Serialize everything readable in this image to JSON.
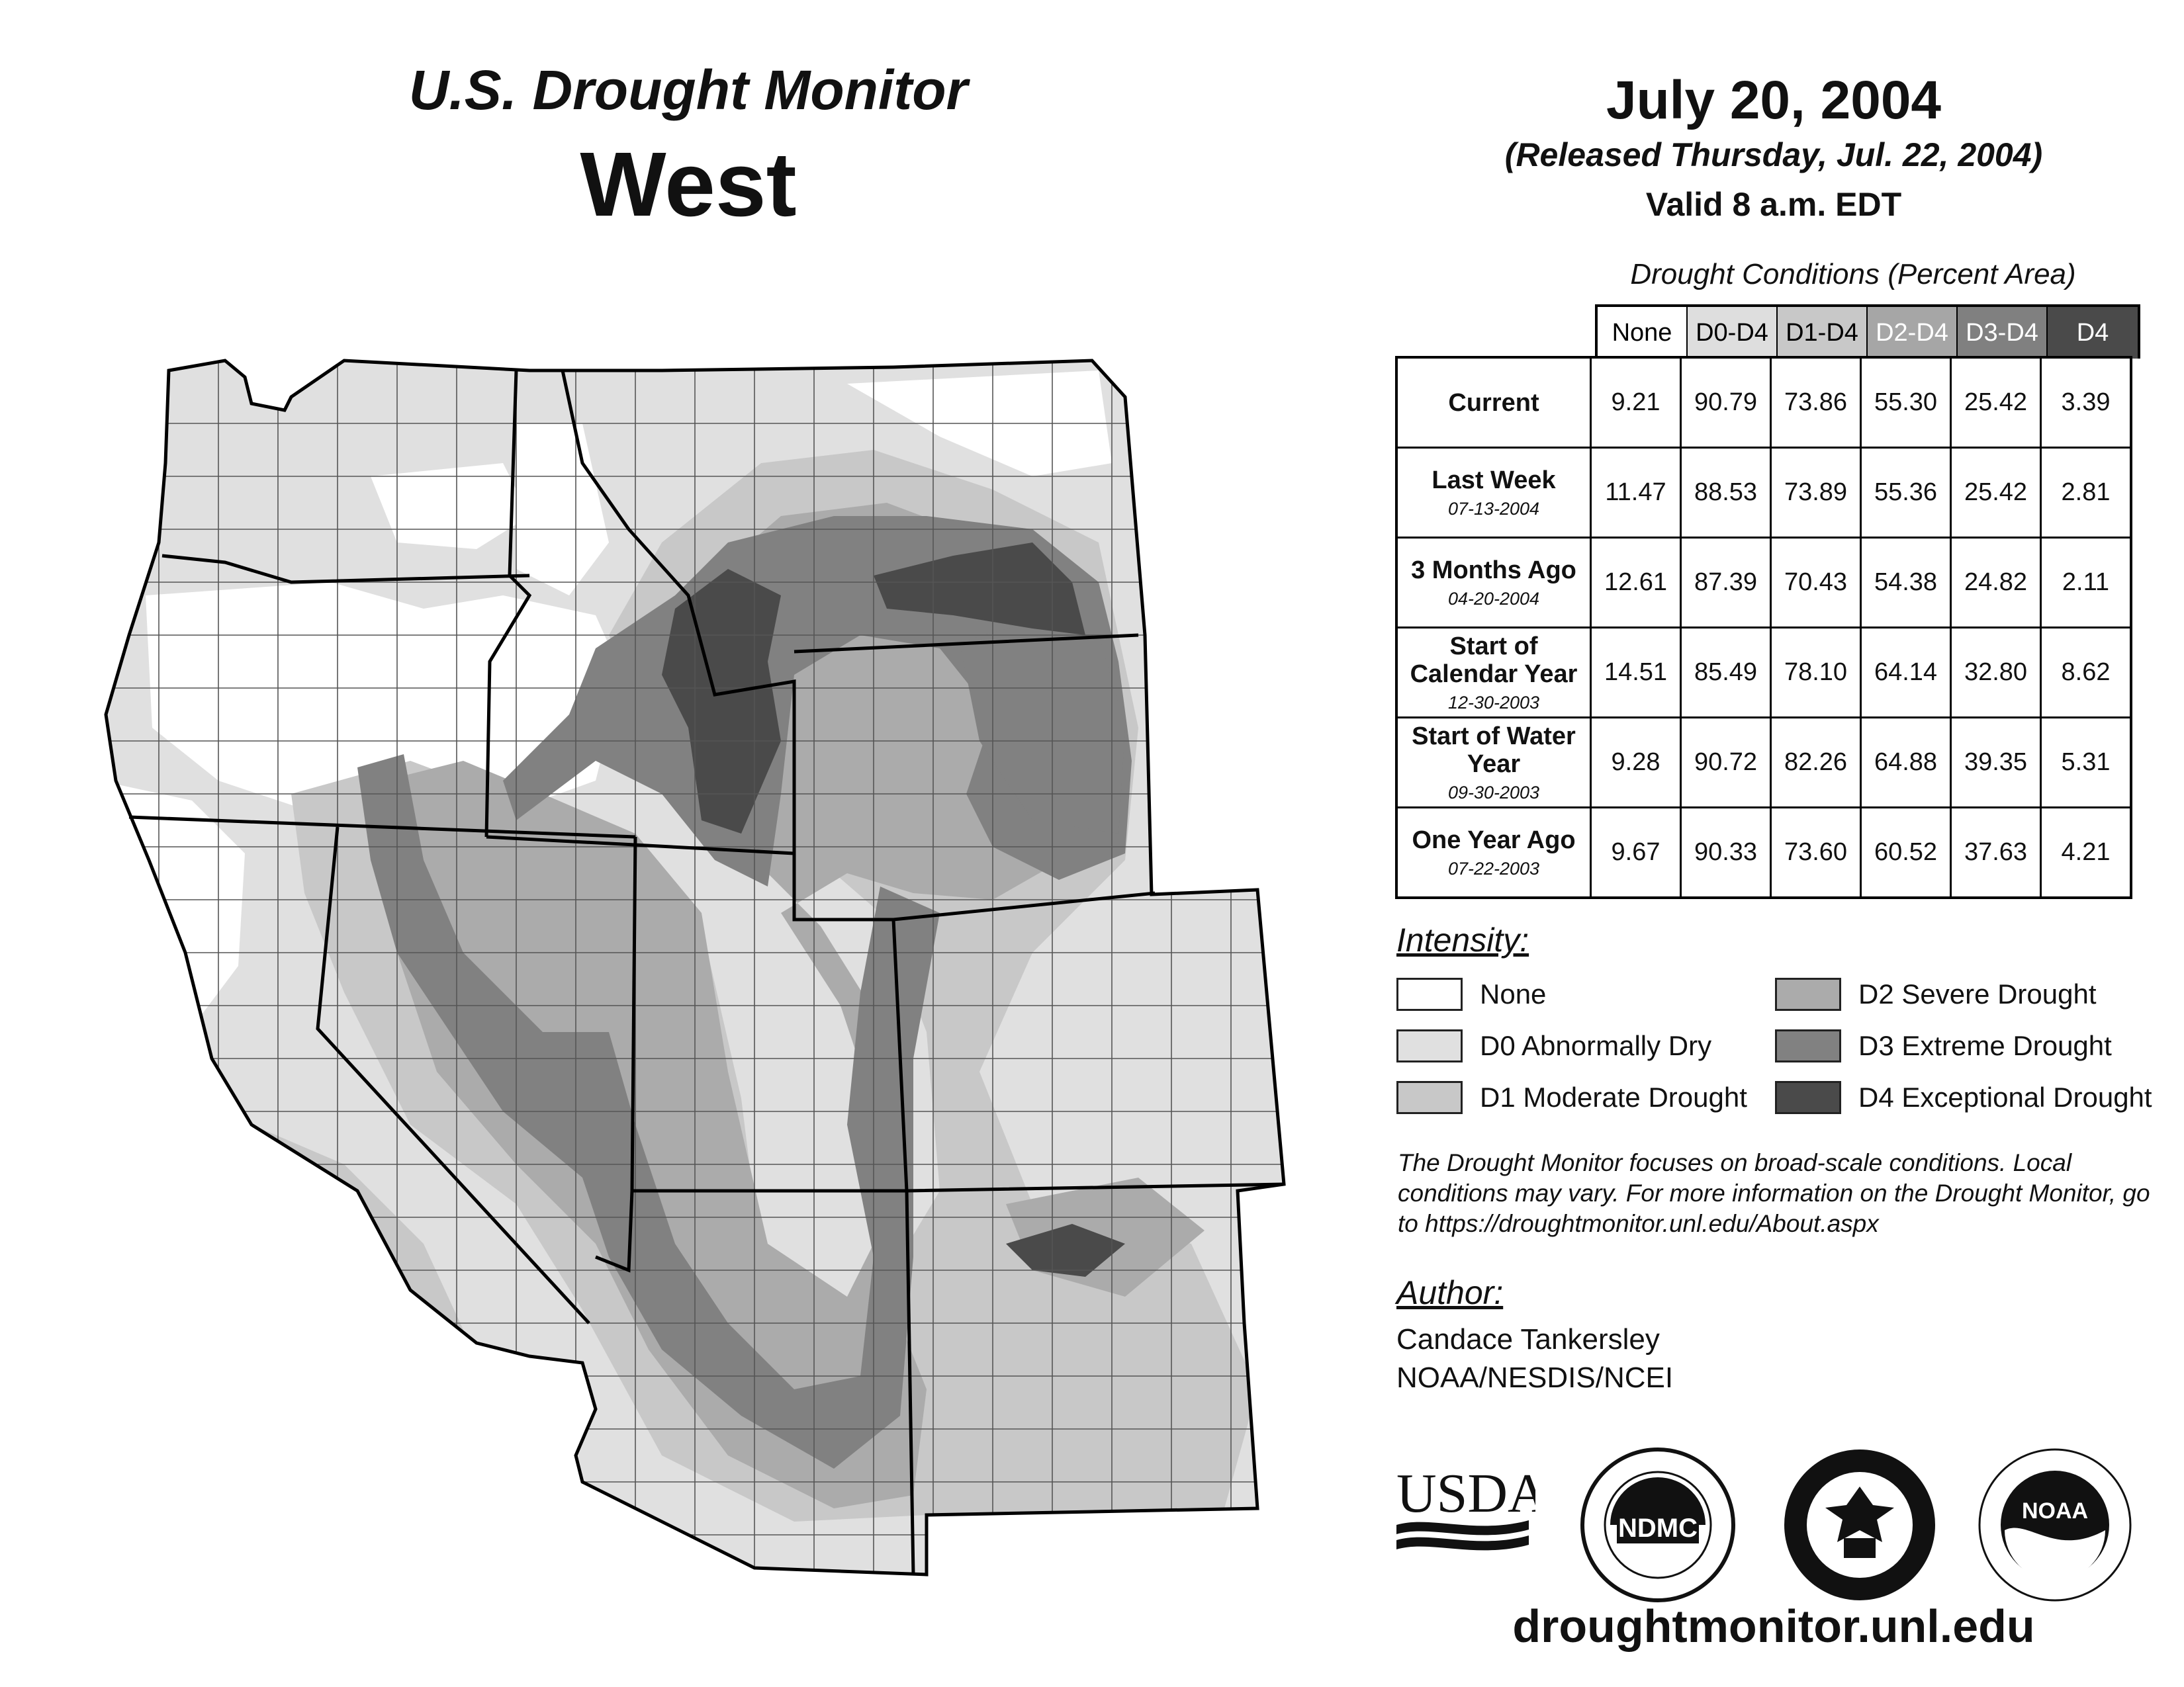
{
  "header": {
    "subtitle": "U.S. Drought Monitor",
    "region": "West",
    "date": "July 20, 2004",
    "released": "(Released Thursday, Jul. 22, 2004)",
    "valid": "Valid 8 a.m. EDT"
  },
  "table": {
    "caption": "Drought Conditions (Percent Area)",
    "columns": [
      "None",
      "D0-D4",
      "D1-D4",
      "D2-D4",
      "D3-D4",
      "D4"
    ],
    "column_colors": [
      "#ffffff",
      "#dedede",
      "#c8c8c8",
      "#a6a6a6",
      "#808080",
      "#4a4a4a"
    ],
    "rows": [
      {
        "label": "Current",
        "date": "",
        "values": [
          "9.21",
          "90.79",
          "73.86",
          "55.30",
          "25.42",
          "3.39"
        ]
      },
      {
        "label": "Last Week",
        "date": "07-13-2004",
        "values": [
          "11.47",
          "88.53",
          "73.89",
          "55.36",
          "25.42",
          "2.81"
        ]
      },
      {
        "label": "3 Months Ago",
        "date": "04-20-2004",
        "values": [
          "12.61",
          "87.39",
          "70.43",
          "54.38",
          "24.82",
          "2.11"
        ]
      },
      {
        "label": "Start of Calendar Year",
        "date": "12-30-2003",
        "values": [
          "14.51",
          "85.49",
          "78.10",
          "64.14",
          "32.80",
          "8.62"
        ]
      },
      {
        "label": "Start of Water Year",
        "date": "09-30-2003",
        "values": [
          "9.28",
          "90.72",
          "82.26",
          "64.88",
          "39.35",
          "5.31"
        ]
      },
      {
        "label": "One Year Ago",
        "date": "07-22-2003",
        "values": [
          "9.67",
          "90.33",
          "73.60",
          "60.52",
          "37.63",
          "4.21"
        ]
      }
    ]
  },
  "legend": {
    "title": "Intensity:",
    "items": [
      {
        "label": "None",
        "color": "#ffffff"
      },
      {
        "label": "D0 Abnormally Dry",
        "color": "#e0e0e0"
      },
      {
        "label": "D1 Moderate Drought",
        "color": "#c8c8c8"
      },
      {
        "label": "D2 Severe Drought",
        "color": "#ababab"
      },
      {
        "label": "D3 Extreme Drought",
        "color": "#818181"
      },
      {
        "label": "D4 Exceptional Drought",
        "color": "#4a4a4a"
      }
    ]
  },
  "disclaimer": "The Drought Monitor focuses on broad-scale conditions. Local conditions may vary. For more information on the Drought Monitor, go to https://droughtmonitor.unl.edu/About.aspx",
  "author": {
    "heading": "Author:",
    "name": "Candace Tankersley",
    "org": "NOAA/NESDIS/NCEI"
  },
  "logos": {
    "usda": "USDA",
    "ndmc": "NDMC",
    "noaa": "NOAA"
  },
  "website": "droughtmonitor.unl.edu"
}
